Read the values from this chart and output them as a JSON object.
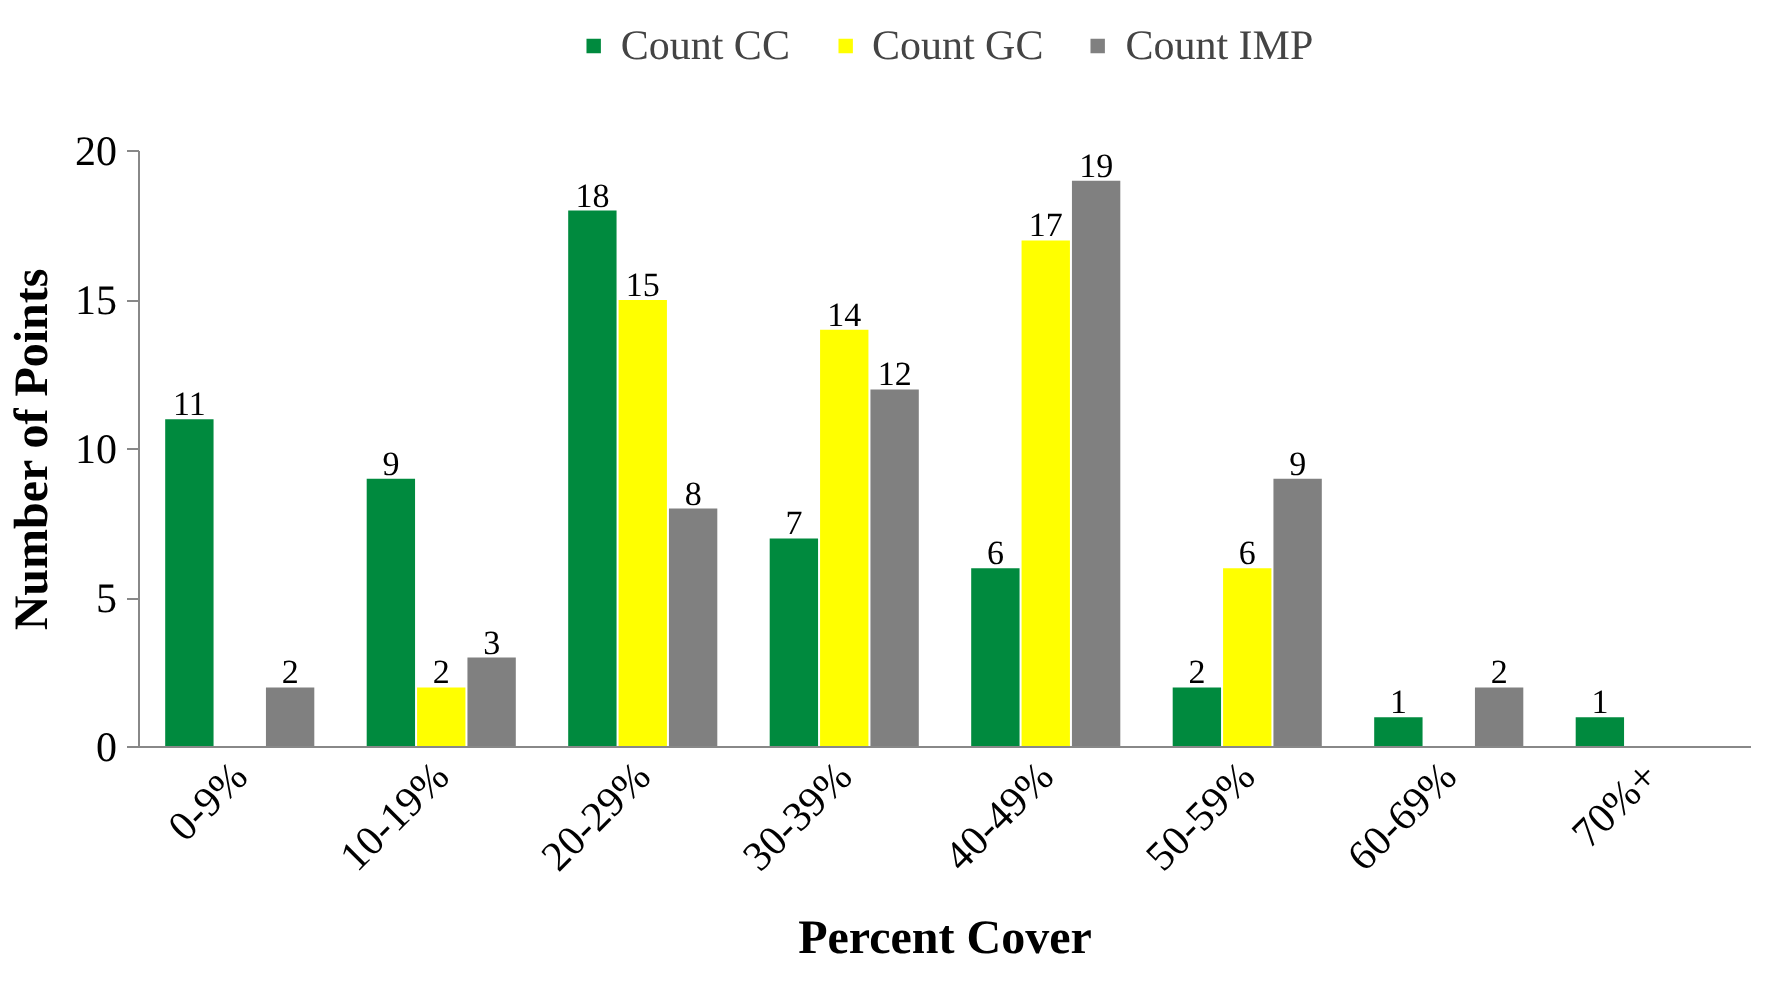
{
  "chart_data": {
    "type": "bar",
    "xlabel": "Percent Cover",
    "ylabel": "Number of Points",
    "categories": [
      "0-9%",
      "10-19%",
      "20-29%",
      "30-39%",
      "40-49%",
      "50-59%",
      "60-69%",
      "70%+"
    ],
    "series": [
      {
        "name": "Count CC",
        "color": "#008a3e",
        "values": [
          11,
          9,
          18,
          7,
          6,
          2,
          1,
          1
        ]
      },
      {
        "name": "Count GC",
        "color": "#ffff00",
        "values": [
          null,
          2,
          15,
          14,
          17,
          6,
          null,
          null
        ]
      },
      {
        "name": "Count IMP",
        "color": "#808080",
        "values": [
          2,
          3,
          8,
          12,
          19,
          9,
          2,
          null
        ]
      }
    ],
    "ylim": [
      0,
      20
    ],
    "yticks": [
      0,
      5,
      10,
      15,
      20
    ],
    "grid": false,
    "legend": "top",
    "data_labels": true
  }
}
